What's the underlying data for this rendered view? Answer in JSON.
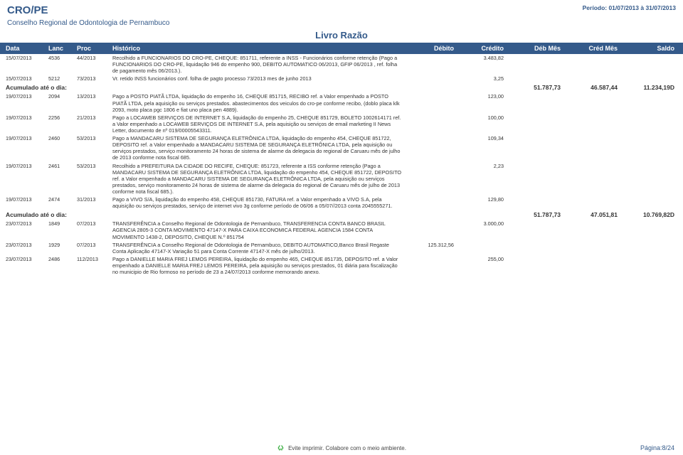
{
  "header": {
    "org_code": "CRO/PE",
    "period": "Período: 01/07/2013 à 31/07/2013",
    "org_name": "Conselho Regional de Odontologia de Pernambuco",
    "title": "Livro Razão"
  },
  "columns": {
    "data": "Data",
    "lanc": "Lanc",
    "proc": "Proc",
    "hist": "Histórico",
    "deb": "Débito",
    "cred": "Crédito",
    "dm": "Déb Mês",
    "cm": "Créd Mês",
    "saldo": "Saldo"
  },
  "rows1": [
    {
      "data": "15/07/2013",
      "lanc": "4536",
      "proc": "44/2013",
      "hist": "Recolhido a FUNCIONARIOS DO CRO-PE, CHEQUE: 851711, referente a INSS - Funcionários  conforme retenção (Pago a FUNCIONARIOS DO CRO-PE, liquidação 946 do empenho 900, DEBITO AUTOMATICO 06/2013, GFIP 06/2013 , ref. folha de pagamento mês 06/2013.).",
      "cred": "3.483,82"
    },
    {
      "data": "15/07/2013",
      "lanc": "5212",
      "proc": "73/2013",
      "hist": "Vr. retido INSS  funcionários conf. folha de pagto processo 73/2013  mes de junho 2013",
      "cred": "3,25"
    }
  ],
  "accum1": {
    "label": "Acumulado até o dia:",
    "dm": "51.787,73",
    "cm": "46.587,44",
    "saldo": "11.234,19D"
  },
  "rows2": [
    {
      "data": "19/07/2013",
      "lanc": "2094",
      "proc": "13/2013",
      "hist": "Pago a POSTO PIATÃ LTDA, liquidação  do empenho 16, CHEQUE 851715, RECIBO  ref. a Valor empenhado a POSTO PIATÃ LTDA, pela aquisição ou serviços prestados. abastecimentos dos veiculos do cro-pe conforme recibo, (doblo placa klk 2093, moto placa pgc 1806 e fiat uno placa pen 4889).",
      "cred": "123,00"
    },
    {
      "data": "19/07/2013",
      "lanc": "2256",
      "proc": "21/2013",
      "hist": "Pago a LOCAWEB SERVIÇOS DE INTERNET S.A, liquidação  do empenho 25, CHEQUE 851729, BOLETO 1002614171 ref. a Valor empenhado a LOCAWEB SERVIÇOS DE INTERNET S.A, pela aquisição ou serviços de email marketing II News Letter, documento de nº 019/00005543311.",
      "cred": "100,00"
    },
    {
      "data": "19/07/2013",
      "lanc": "2460",
      "proc": "53/2013",
      "hist": "Pago a MANDACARU SISTEMA DE SEGURANÇA ELETRÔNICA LTDA, liquidação  do empenho 454, CHEQUE 851722, DEPOSITO  ref. a Valor empenhado a MANDACARU SISTEMA DE SEGURANÇA ELETRÔNICA LTDA, pela aquisição ou serviços prestados, serviço monitoramento 24 horas de sistema de alarme da delegacia do regional de Caruaru mês de julho de 2013 conforme nota fiscal 685.",
      "cred": "109,34"
    },
    {
      "data": "19/07/2013",
      "lanc": "2461",
      "proc": "53/2013",
      "hist": "Recolhido a PREFEITURA DA CIDADE DO RECIFE, CHEQUE: 851723, referente a ISS  conforme retenção (Pago a MANDACARU SISTEMA DE SEGURANÇA ELETRÔNICA LTDA, liquidação do empenho 454, CHEQUE 851722, DEPOSITO  ref. a Valor empenhado a MANDACARU SISTEMA DE SEGURANÇA ELETRÔNICA LTDA, pela aquisição ou serviços prestados, serviço monitoramento 24 horas de sistema de alarme da delegacia do regional de Caruaru mês de julho de 2013 conforme nota fiscal 685.).",
      "cred": "2,23"
    },
    {
      "data": "19/07/2013",
      "lanc": "2474",
      "proc": "31/2013",
      "hist": "Pago a VIVO S/A, liquidação  do empenho 458, CHEQUE 851730, FATURA  ref. a Valor empenhado a VIVO S.A, pela aquisição ou serviços prestados, serviço de internet vivo 3g conforme período de 06/06 a 05/07//2013 conta 2045555271.",
      "cred": "129,80"
    }
  ],
  "accum2": {
    "label": "Acumulado até o dia:",
    "dm": "51.787,73",
    "cm": "47.051,81",
    "saldo": "10.769,82D"
  },
  "rows3": [
    {
      "data": "23/07/2013",
      "lanc": "1849",
      "proc": "07/2013",
      "hist": "TRANSFERÊNCIA a Conselho Regional de Odontologia de Pernambuco, TRANSFERENCIA CONTA BANCO BRASIL AGENCIA 2805-3 CONTA MOVIMENTO 47147-X PARA CAIXA ECONOMICA FEDERAL AGENCIA 1584 CONTA MOVIMENTO 1438-2, DEPOSITO, CHEQUE N.º 851754",
      "cred": "3.000,00"
    },
    {
      "data": "23/07/2013",
      "lanc": "1929",
      "proc": "07/2013",
      "hist": "TRANSFERÊNCIA a Conselho Regional de Odontologia de Pernambuco, DEBITO AUTOMATICO,Banco Brasil Regaste Conta Aplicação 47147-X Variação 51 para Conta Corrente 47147-X mês de julho/2013.",
      "deb": "125.312,56"
    },
    {
      "data": "23/07/2013",
      "lanc": "2486",
      "proc": "112/2013",
      "hist": "Pago a DANIELLE MARIA FREJ LEMOS PEREIRA, liquidação  do empenho 465, CHEQUE 851735, DEPOSITO  ref. a Valor empenhado a DANIELLE MARIA FREJ LEMOS PEREIRA, pela aquisição ou serviços prestados, 01 diária para fiscalização no municipio de Rio formoso no período de 23 a 24/07/2013 conforme memorando anexo.",
      "cred": "255,00"
    }
  ],
  "footer": {
    "message": "Evite imprimir. Colabore com o meio ambiente.",
    "page": "Página:8/24",
    "recycle_color": "#3cb043"
  },
  "colors": {
    "brand": "#345a8a",
    "text": "#333333"
  }
}
